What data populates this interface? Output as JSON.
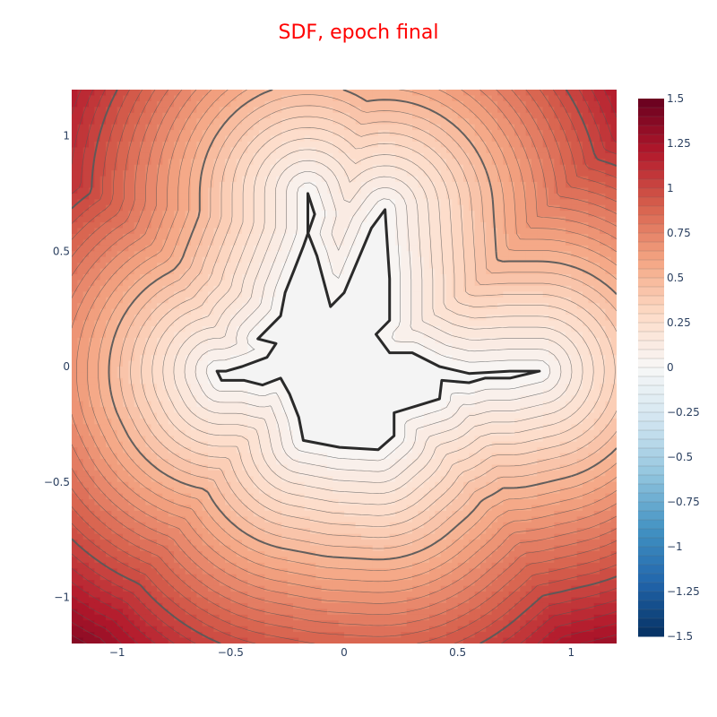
{
  "title": "SDF, epoch final",
  "title_color": "#ff0000",
  "chart_data": {
    "type": "heatmap",
    "subtype": "contour",
    "title": "SDF, epoch final",
    "xlim": [
      -1.2,
      1.2
    ],
    "ylim": [
      -1.2,
      1.2
    ],
    "x_ticks": [
      -1,
      -0.5,
      0,
      0.5,
      1
    ],
    "y_ticks": [
      -1,
      -0.5,
      0,
      0.5,
      1
    ],
    "x_tick_labels": [
      "−1",
      "−0.5",
      "0",
      "0.5",
      "1"
    ],
    "y_tick_labels": [
      "−1",
      "−0.5",
      "0",
      "0.5",
      "1"
    ],
    "colorscale": "RdBu (reversed)",
    "zmin": -1.5,
    "zmax": 1.5,
    "contour_step": 0.05,
    "emphasized_levels": [
      0,
      0.5,
      1.0
    ],
    "colorbar_ticks": [
      1.5,
      1.25,
      1,
      0.75,
      0.5,
      0.25,
      0,
      -0.25,
      -0.5,
      -0.75,
      -1,
      -1.25,
      -1.5
    ],
    "colorbar_tick_labels": [
      "1.5",
      "1.25",
      "1",
      "0.75",
      "0.5",
      "0.25",
      "0",
      "−0.25",
      "−0.5",
      "−0.75",
      "−1",
      "−1.25",
      "−1.5"
    ],
    "field_min_estimate": 0,
    "field_max_estimate": 1.45,
    "zero_level_shape": [
      [
        -0.28,
        -0.05
      ],
      [
        -0.24,
        -0.12
      ],
      [
        -0.2,
        -0.22
      ],
      [
        -0.18,
        -0.32
      ],
      [
        -0.02,
        -0.35
      ],
      [
        0.15,
        -0.36
      ],
      [
        0.22,
        -0.3
      ],
      [
        0.22,
        -0.2
      ],
      [
        0.32,
        -0.17
      ],
      [
        0.42,
        -0.14
      ],
      [
        0.43,
        -0.06
      ],
      [
        0.55,
        -0.07
      ],
      [
        0.62,
        -0.05
      ],
      [
        0.73,
        -0.05
      ],
      [
        0.86,
        -0.02
      ],
      [
        0.73,
        -0.02
      ],
      [
        0.55,
        -0.03
      ],
      [
        0.42,
        0.0
      ],
      [
        0.3,
        0.06
      ],
      [
        0.2,
        0.06
      ],
      [
        0.14,
        0.14
      ],
      [
        0.2,
        0.2
      ],
      [
        0.2,
        0.38
      ],
      [
        0.18,
        0.68
      ],
      [
        0.12,
        0.6
      ],
      [
        0.06,
        0.46
      ],
      [
        0.0,
        0.32
      ],
      [
        -0.06,
        0.26
      ],
      [
        -0.12,
        0.48
      ],
      [
        -0.16,
        0.58
      ],
      [
        -0.16,
        0.75
      ],
      [
        -0.13,
        0.66
      ],
      [
        -0.18,
        0.52
      ],
      [
        -0.22,
        0.42
      ],
      [
        -0.26,
        0.32
      ],
      [
        -0.28,
        0.22
      ],
      [
        -0.38,
        0.12
      ],
      [
        -0.3,
        0.1
      ],
      [
        -0.34,
        0.04
      ],
      [
        -0.45,
        0.0
      ],
      [
        -0.52,
        -0.02
      ],
      [
        -0.56,
        -0.02
      ],
      [
        -0.54,
        -0.06
      ],
      [
        -0.44,
        -0.06
      ],
      [
        -0.36,
        -0.08
      ]
    ]
  }
}
